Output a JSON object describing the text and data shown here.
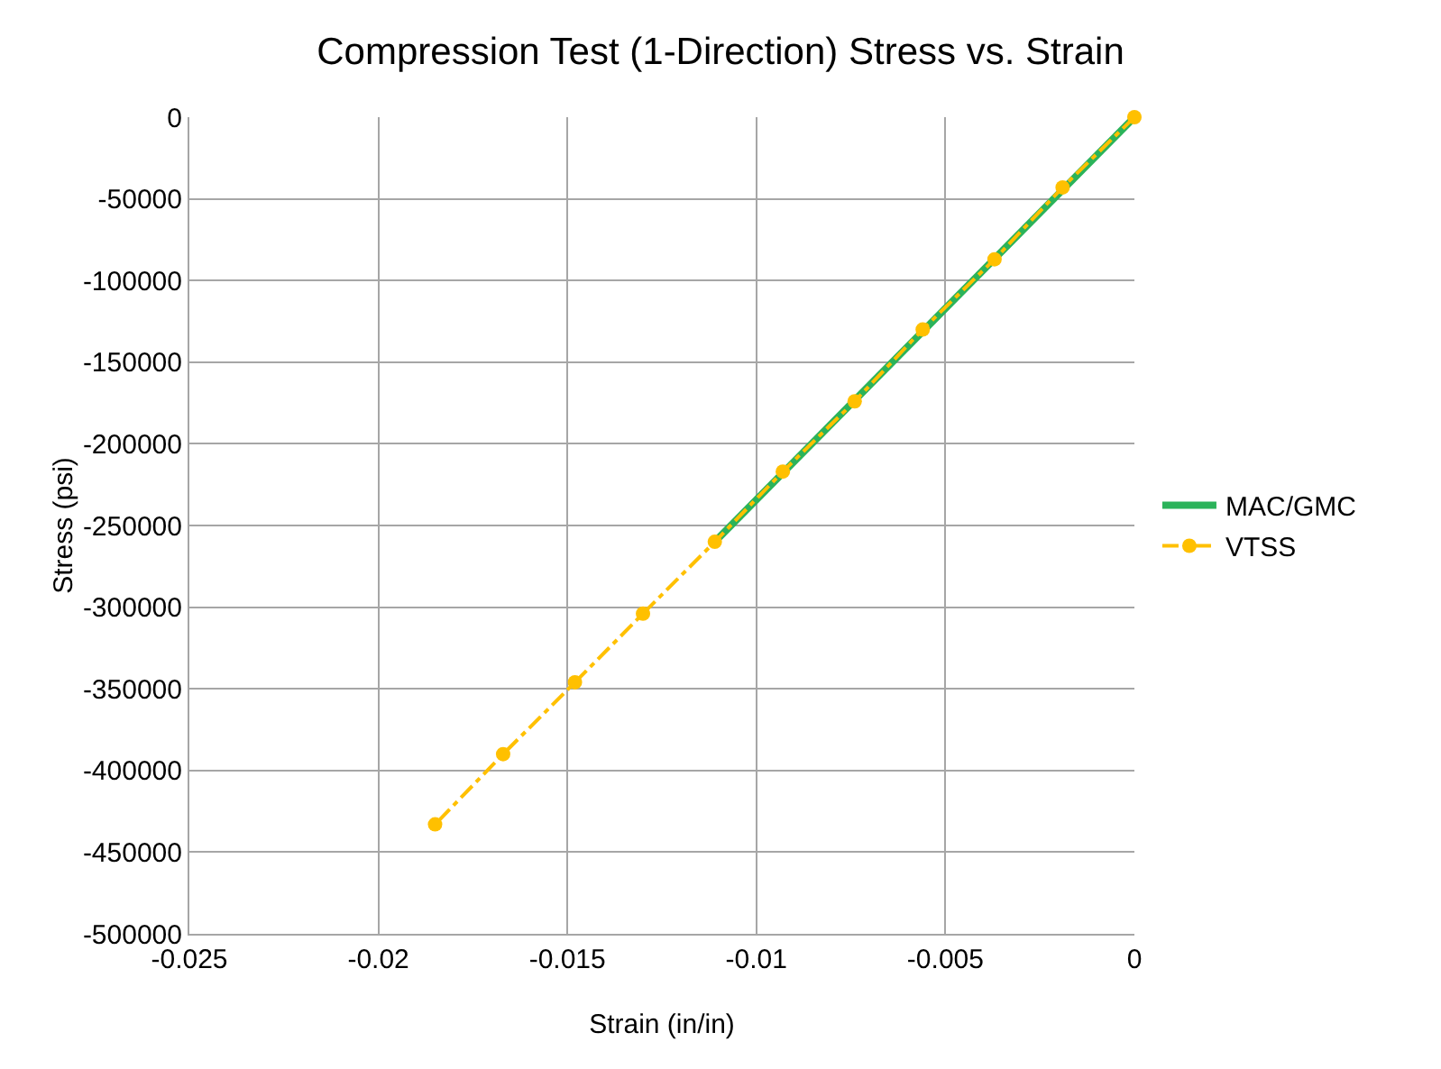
{
  "chart_data": {
    "type": "line",
    "title": "Compression Test (1-Direction) Stress vs. Strain",
    "xlabel": "Strain (in/in)",
    "ylabel": "Stress (psi)",
    "xlim": [
      -0.025,
      0
    ],
    "xticks": [
      -0.025,
      -0.02,
      -0.015,
      -0.01,
      -0.005,
      0
    ],
    "ylim": [
      -500000,
      0
    ],
    "yticks": [
      -500000,
      -450000,
      -400000,
      -350000,
      -300000,
      -250000,
      -200000,
      -150000,
      -100000,
      -50000,
      0
    ],
    "grid": true,
    "legend": "right",
    "series": [
      {
        "name": "MAC/GMC",
        "color": "#2bb35a",
        "marker": "none",
        "line_style": "solid",
        "x": [
          0,
          -0.0111
        ],
        "values": [
          0,
          -260000
        ]
      },
      {
        "name": "VTSS",
        "color": "#ffc000",
        "marker": "circle",
        "line_style": "dashed",
        "x": [
          0,
          -0.0019,
          -0.0037,
          -0.0056,
          -0.0074,
          -0.0093,
          -0.0111,
          -0.013,
          -0.0148,
          -0.0167,
          -0.0185
        ],
        "values": [
          0,
          -43000,
          -87000,
          -130000,
          -174000,
          -217000,
          -260000,
          -304000,
          -346000,
          -390000,
          -433000
        ]
      }
    ]
  }
}
